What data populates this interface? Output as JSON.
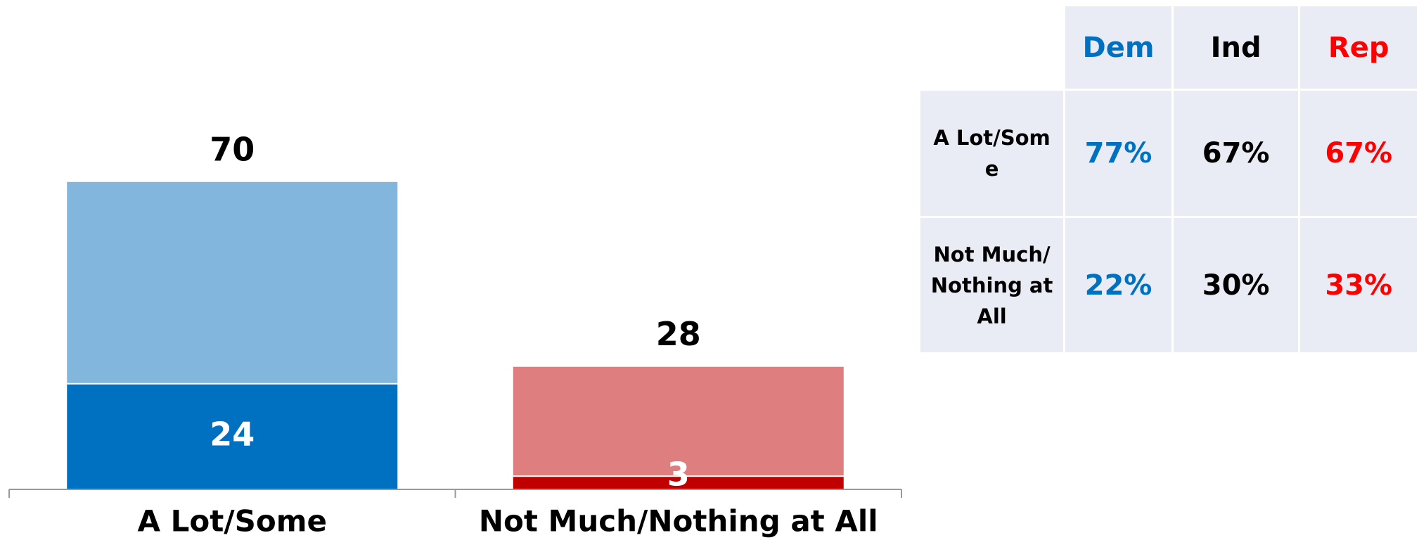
{
  "chart_data": {
    "type": "overlay_bar",
    "categories": [
      "A Lot/Some",
      "Not Much/Nothing at All"
    ],
    "series": [
      {
        "colors": [
          "#82b6dd",
          "#df7e7e"
        ],
        "values": [
          70,
          28
        ]
      },
      {
        "colors": [
          "#0070c0",
          "#c00000"
        ],
        "values": [
          24,
          3
        ]
      }
    ],
    "ylim": [
      0,
      100
    ]
  },
  "table": {
    "columns": [
      "Dem",
      "Ind",
      "Rep"
    ],
    "column_colors": [
      "#0070c0",
      "#000000",
      "#ff0000"
    ],
    "rows": [
      {
        "label": "A Lot/Some",
        "values": [
          "77%",
          "67%",
          "67%"
        ]
      },
      {
        "label": "Not Much/Nothing at All",
        "values": [
          "22%",
          "30%",
          "33%"
        ]
      }
    ]
  }
}
